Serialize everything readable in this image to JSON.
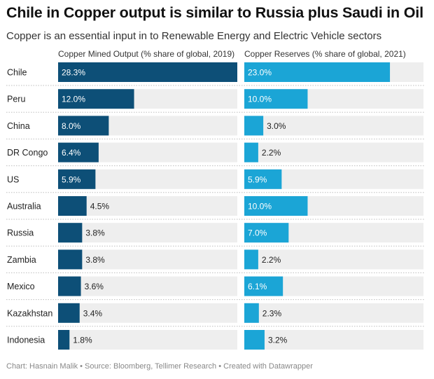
{
  "title": "Chile in Copper output is similar to Russia plus Saudi in Oil",
  "subtitle": "Copper is an essential input in to Renewable Energy and Electric Vehicle sectors",
  "footer": "Chart: Hasnain Malik • Source: Bloomberg, Tellimer Research • Created with Datawrapper",
  "colors": {
    "output": "#0d4f77",
    "reserves": "#1ba5d6",
    "track": "#eeeeee",
    "separator": "#bdbdbd"
  },
  "chart_data": {
    "type": "bar",
    "categories": [
      "Chile",
      "Peru",
      "China",
      "DR Congo",
      "US",
      "Australia",
      "Russia",
      "Zambia",
      "Mexico",
      "Kazakhstan",
      "Indonesia"
    ],
    "xlim": [
      0,
      28.3
    ],
    "grid": false,
    "series": [
      {
        "name": "Copper Mined Output (% share of global, 2019)",
        "values": [
          28.3,
          12.0,
          8.0,
          6.4,
          5.9,
          4.5,
          3.8,
          3.8,
          3.6,
          3.4,
          1.8
        ],
        "labels": [
          "28.3%",
          "12.0%",
          "8.0%",
          "6.4%",
          "5.9%",
          "4.5%",
          "3.8%",
          "3.8%",
          "3.6%",
          "3.4%",
          "1.8%"
        ]
      },
      {
        "name": "Copper Reserves (% share of global, 2021)",
        "values": [
          23.0,
          10.0,
          3.0,
          2.2,
          5.9,
          10.0,
          7.0,
          2.2,
          6.1,
          2.3,
          3.2
        ],
        "labels": [
          "23.0%",
          "10.0%",
          "3.0%",
          "2.2%",
          "5.9%",
          "10.0%",
          "7.0%",
          "2.2%",
          "6.1%",
          "2.3%",
          "3.2%"
        ]
      }
    ]
  }
}
